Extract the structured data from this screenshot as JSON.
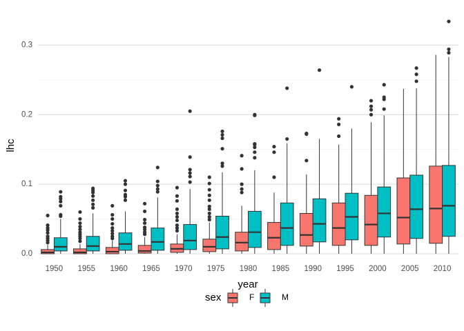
{
  "chart_data": {
    "type": "boxplot",
    "xlabel": "year",
    "ylabel": "lhc",
    "ylim": [
      -0.005,
      0.345
    ],
    "yticks": [
      0.0,
      0.1,
      0.2,
      0.3
    ],
    "ytick_labels": [
      "0.0",
      "0.1",
      "0.2",
      "0.3"
    ],
    "grid": "horizontal",
    "legend": {
      "title": "sex",
      "position": "bottom"
    },
    "categories": [
      "1950",
      "1955",
      "1960",
      "1965",
      "1970",
      "1975",
      "1980",
      "1985",
      "1990",
      "1995",
      "2000",
      "2005",
      "2010"
    ],
    "series": [
      {
        "name": "F",
        "color": "#F8766D",
        "boxes": [
          {
            "min": 0.0,
            "q1": 0.0,
            "median": 0.002,
            "q3": 0.006,
            "max": 0.013,
            "outliers": [
              0.016,
              0.019,
              0.022,
              0.025,
              0.03,
              0.034,
              0.037,
              0.041,
              0.055
            ]
          },
          {
            "min": 0.0,
            "q1": 0.0,
            "median": 0.002,
            "q3": 0.007,
            "max": 0.014,
            "outliers": [
              0.018,
              0.022,
              0.025,
              0.028,
              0.031,
              0.035,
              0.039,
              0.044,
              0.05,
              0.06
            ]
          },
          {
            "min": 0.0,
            "q1": 0.0,
            "median": 0.003,
            "q3": 0.009,
            "max": 0.019,
            "outliers": [
              0.022,
              0.025,
              0.029,
              0.033,
              0.037,
              0.043,
              0.05,
              0.056,
              0.069
            ]
          },
          {
            "min": 0.0,
            "q1": 0.001,
            "median": 0.004,
            "q3": 0.012,
            "max": 0.024,
            "outliers": [
              0.028,
              0.031,
              0.035,
              0.038,
              0.044,
              0.049,
              0.061,
              0.072
            ]
          },
          {
            "min": 0.0,
            "q1": 0.002,
            "median": 0.007,
            "q3": 0.014,
            "max": 0.028,
            "outliers": [
              0.033,
              0.037,
              0.041,
              0.048,
              0.053,
              0.058,
              0.064,
              0.076,
              0.083,
              0.095
            ]
          },
          {
            "min": 0.0,
            "q1": 0.003,
            "median": 0.01,
            "q3": 0.021,
            "max": 0.045,
            "outliers": [
              0.049,
              0.053,
              0.058,
              0.064,
              0.068,
              0.077,
              0.084,
              0.092,
              0.101,
              0.11
            ]
          },
          {
            "min": 0.0,
            "q1": 0.004,
            "median": 0.016,
            "q3": 0.031,
            "max": 0.069,
            "outliers": [
              0.088,
              0.093,
              0.1,
              0.122,
              0.141
            ]
          },
          {
            "min": 0.0,
            "q1": 0.006,
            "median": 0.023,
            "q3": 0.045,
            "max": 0.088,
            "outliers": [
              0.11,
              0.146,
              0.154
            ]
          },
          {
            "min": 0.0,
            "q1": 0.011,
            "median": 0.027,
            "q3": 0.058,
            "max": 0.114,
            "outliers": [
              0.134,
              0.172,
              0.173
            ]
          },
          {
            "min": 0.0,
            "q1": 0.012,
            "median": 0.037,
            "q3": 0.073,
            "max": 0.157,
            "outliers": [
              0.169,
              0.186,
              0.194
            ]
          },
          {
            "min": 0.0,
            "q1": 0.012,
            "median": 0.042,
            "q3": 0.084,
            "max": 0.189,
            "outliers": [
              0.2,
              0.207,
              0.212,
              0.22
            ]
          },
          {
            "min": 0.0,
            "q1": 0.014,
            "median": 0.052,
            "q3": 0.109,
            "max": 0.237,
            "outliers": []
          },
          {
            "min": 0.0,
            "q1": 0.015,
            "median": 0.065,
            "q3": 0.126,
            "max": 0.286,
            "outliers": []
          }
        ]
      },
      {
        "name": "M",
        "color": "#00BFC4",
        "boxes": [
          {
            "min": 0.0,
            "q1": 0.004,
            "median": 0.01,
            "q3": 0.023,
            "max": 0.05,
            "outliers": [
              0.054,
              0.056,
              0.069,
              0.075,
              0.079,
              0.082,
              0.089
            ]
          },
          {
            "min": 0.0,
            "q1": 0.004,
            "median": 0.011,
            "q3": 0.025,
            "max": 0.058,
            "outliers": [
              0.066,
              0.071,
              0.077,
              0.083,
              0.088,
              0.091,
              0.094
            ]
          },
          {
            "min": 0.0,
            "q1": 0.005,
            "median": 0.014,
            "q3": 0.03,
            "max": 0.061,
            "outliers": [
              0.077,
              0.082,
              0.085,
              0.091,
              0.1,
              0.105
            ]
          },
          {
            "min": 0.0,
            "q1": 0.005,
            "median": 0.017,
            "q3": 0.037,
            "max": 0.081,
            "outliers": [
              0.089,
              0.093,
              0.098,
              0.104,
              0.124
            ]
          },
          {
            "min": 0.0,
            "q1": 0.006,
            "median": 0.019,
            "q3": 0.042,
            "max": 0.093,
            "outliers": [
              0.103,
              0.111,
              0.116,
              0.121,
              0.139,
              0.205
            ]
          },
          {
            "min": 0.0,
            "q1": 0.007,
            "median": 0.024,
            "q3": 0.054,
            "max": 0.117,
            "outliers": [
              0.126,
              0.13,
              0.151,
              0.166,
              0.171,
              0.176
            ]
          },
          {
            "min": 0.0,
            "q1": 0.009,
            "median": 0.031,
            "q3": 0.061,
            "max": 0.12,
            "outliers": [
              0.138,
              0.146,
              0.153,
              0.157,
              0.158,
              0.199,
              0.2
            ]
          },
          {
            "min": 0.0,
            "q1": 0.012,
            "median": 0.037,
            "q3": 0.073,
            "max": 0.159,
            "outliers": [
              0.165,
              0.238
            ]
          },
          {
            "min": 0.0,
            "q1": 0.017,
            "median": 0.043,
            "q3": 0.079,
            "max": 0.165,
            "outliers": [
              0.264
            ]
          },
          {
            "min": 0.0,
            "q1": 0.02,
            "median": 0.053,
            "q3": 0.087,
            "max": 0.18,
            "outliers": [
              0.24
            ]
          },
          {
            "min": 0.0,
            "q1": 0.024,
            "median": 0.058,
            "q3": 0.096,
            "max": 0.199,
            "outliers": [
              0.208,
              0.222,
              0.225,
              0.243
            ]
          },
          {
            "min": 0.0,
            "q1": 0.022,
            "median": 0.064,
            "q3": 0.113,
            "max": 0.238,
            "outliers": [
              0.248,
              0.258,
              0.267
            ]
          },
          {
            "min": 0.0,
            "q1": 0.025,
            "median": 0.069,
            "q3": 0.127,
            "max": 0.283,
            "outliers": [
              0.289,
              0.294,
              0.334
            ]
          }
        ]
      }
    ]
  }
}
